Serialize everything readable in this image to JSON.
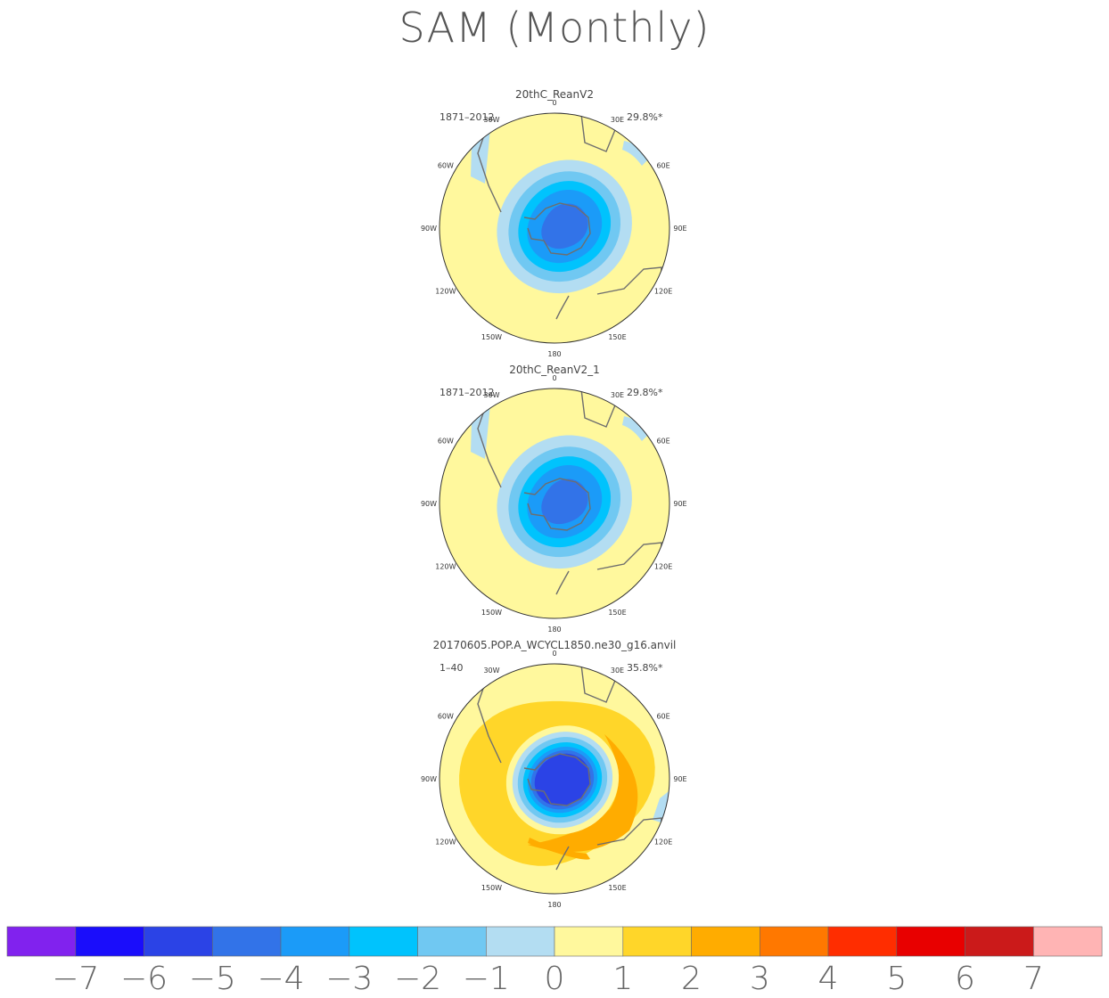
{
  "title": "SAM (Monthly)",
  "colors": {
    "coast": "#6e6e6e",
    "rim": "#333333",
    "scale": [
      "#8122ee",
      "#1a0dfb",
      "#2b43e6",
      "#3273e8",
      "#1b9bf8",
      "#00c3fd",
      "#70c8f2",
      "#b3ddf2",
      "#fff89d",
      "#ffd629",
      "#ffac00",
      "#ff7800",
      "#ff2d00",
      "#e80000",
      "#cb1a1a",
      "#ffb4b4"
    ]
  },
  "chart_data": [
    {
      "type": "heatmap",
      "projection": "polar-stereographic-south",
      "title": "20thC_ReanV2",
      "period": "1871–2012",
      "variance": "29.8%*",
      "pattern": "annular-negative",
      "lon_labels": [
        "0",
        "30E",
        "60E",
        "90E",
        "120E",
        "150E",
        "180",
        "150W",
        "120W",
        "90W",
        "60W",
        "30W"
      ]
    },
    {
      "type": "heatmap",
      "projection": "polar-stereographic-south",
      "title": "20thC_ReanV2_1",
      "period": "1871–2012",
      "variance": "29.8%*",
      "pattern": "annular-negative",
      "lon_labels": [
        "0",
        "30E",
        "60E",
        "90E",
        "120E",
        "150E",
        "180",
        "150W",
        "120W",
        "90W",
        "60W",
        "30W"
      ]
    },
    {
      "type": "heatmap",
      "projection": "polar-stereographic-south",
      "title": "20170605.POP.A_WCYCL1850.ne30_g16.anvil",
      "period": "1–40",
      "variance": "35.8%*",
      "pattern": "annular-dipole",
      "lon_labels": [
        "0",
        "30E",
        "60E",
        "90E",
        "120E",
        "150E",
        "180",
        "150W",
        "120W",
        "90W",
        "60W",
        "30W"
      ]
    }
  ],
  "colorbar": {
    "labels": [
      "−7",
      "−6",
      "−5",
      "−4",
      "−3",
      "−2",
      "−1",
      "0",
      "1",
      "2",
      "3",
      "4",
      "5",
      "6",
      "7"
    ]
  }
}
